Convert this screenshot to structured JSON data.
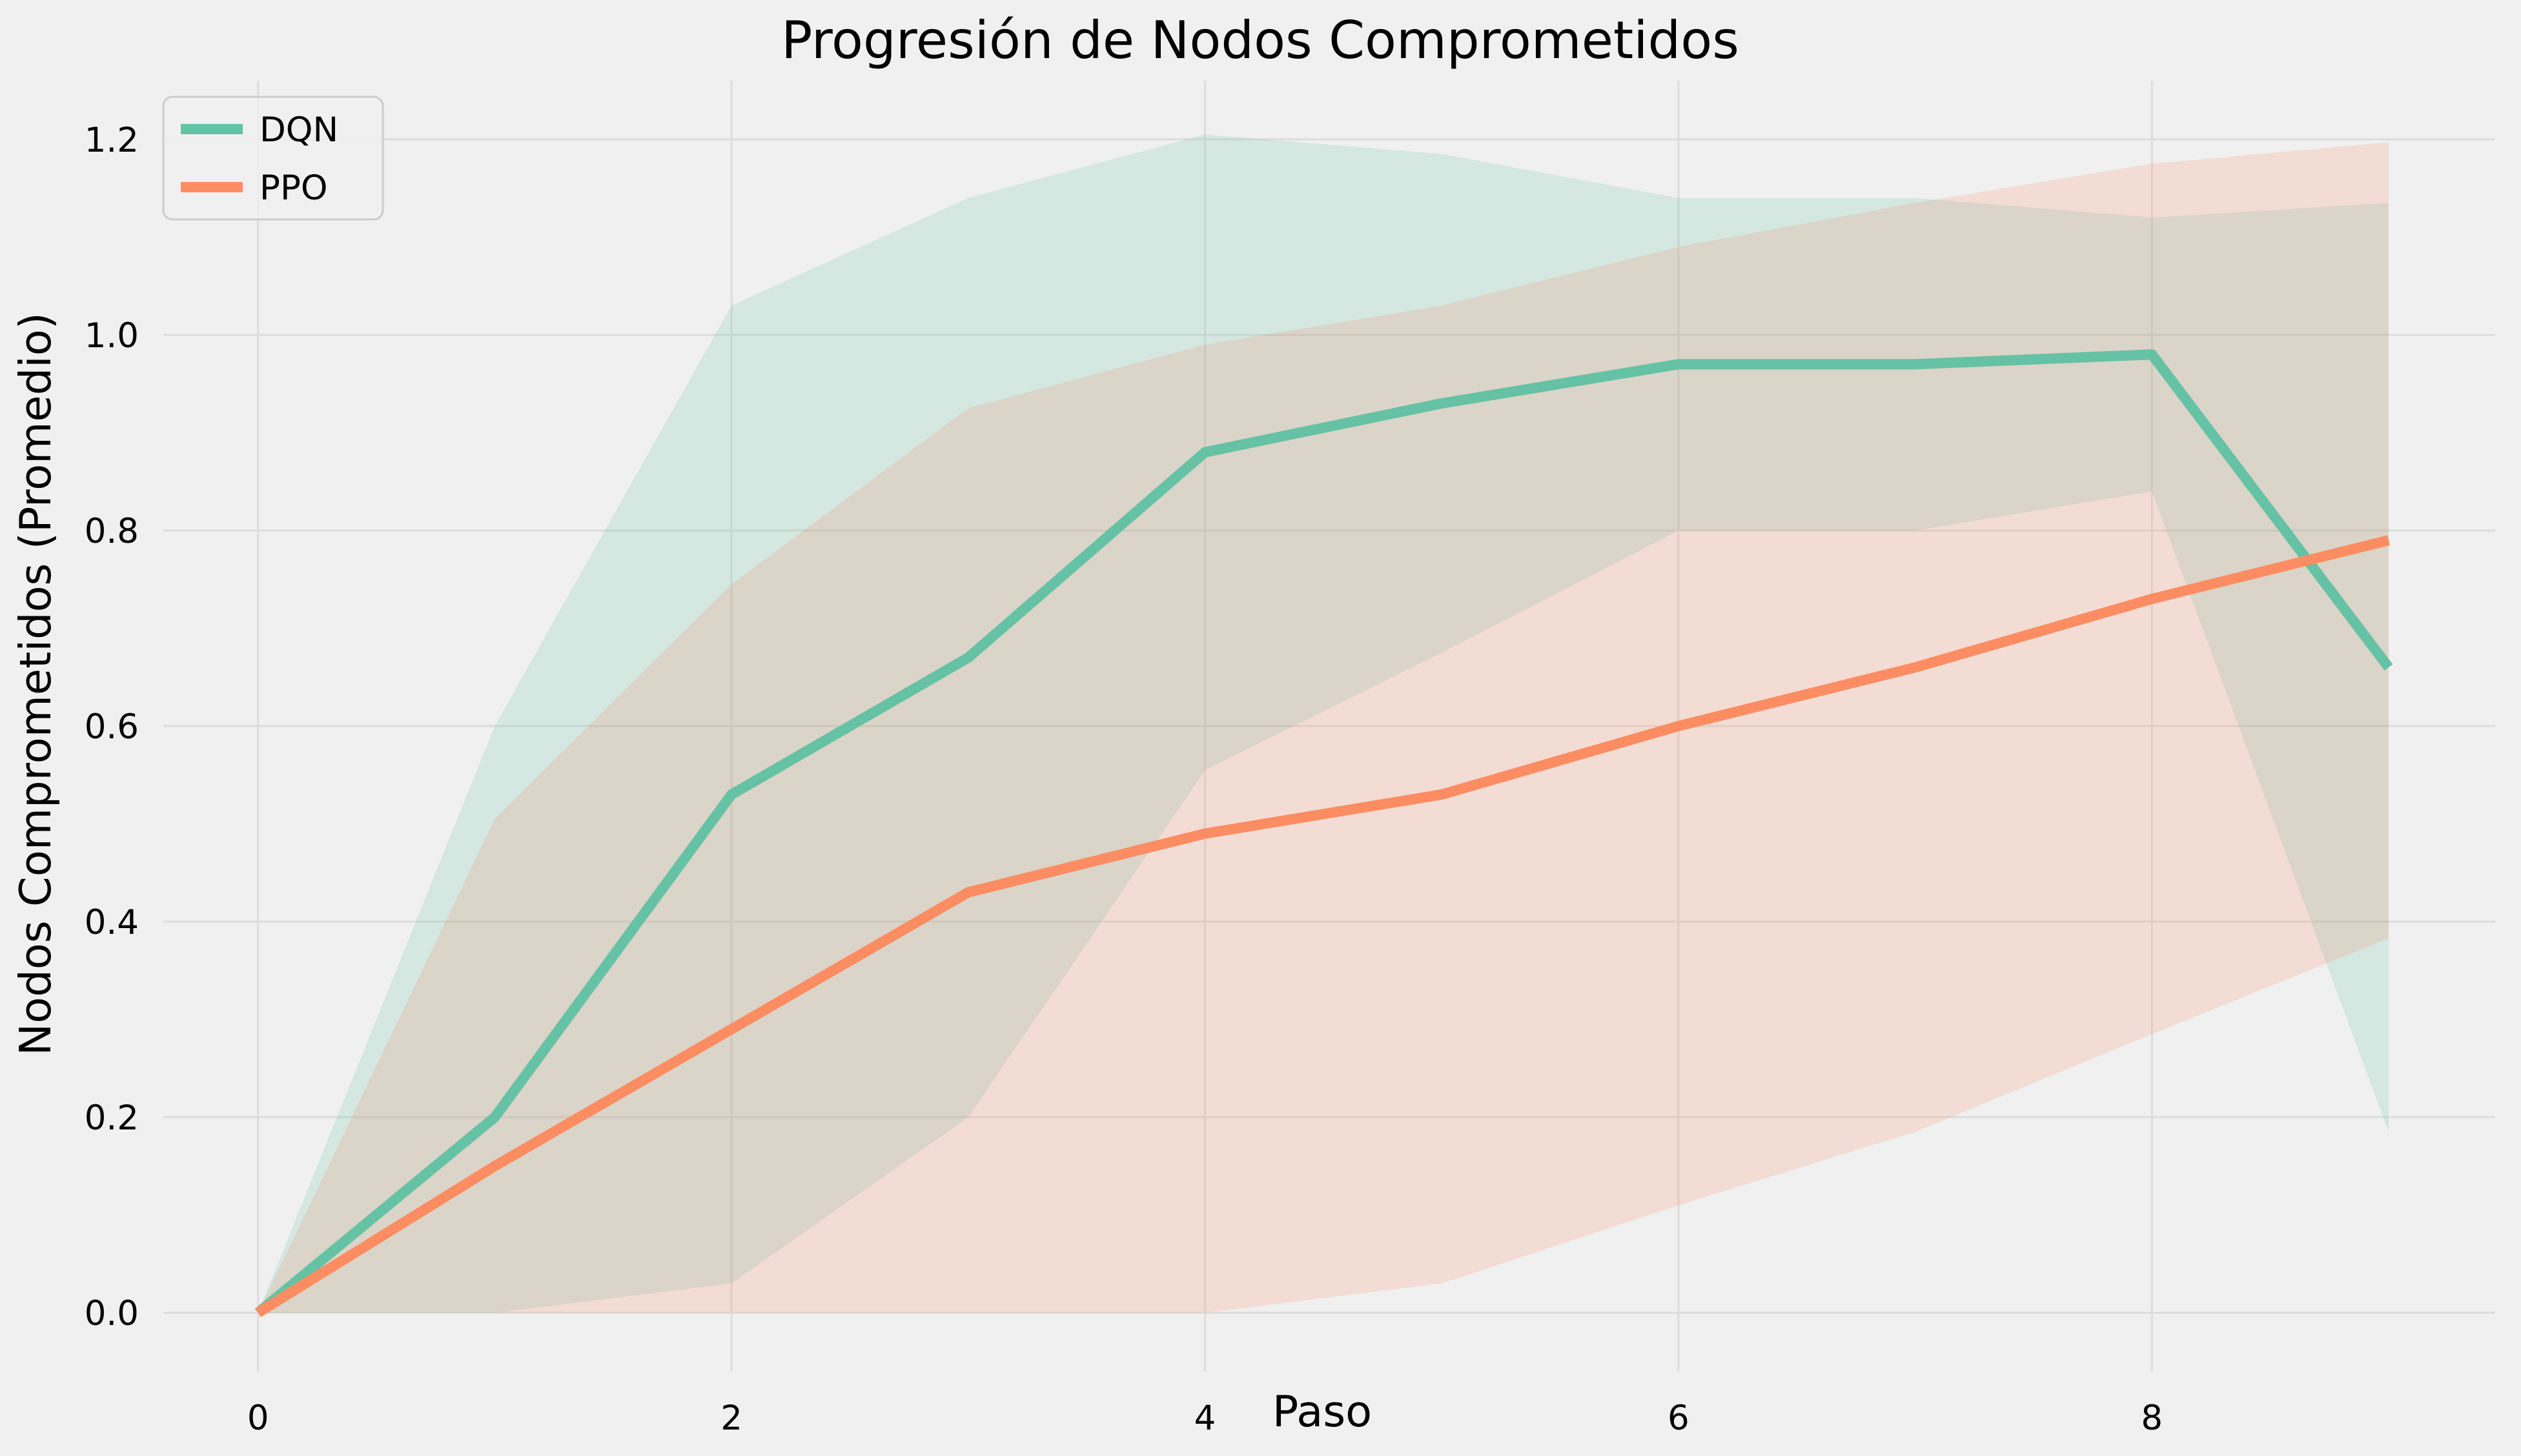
{
  "colors": {
    "background": "#f0f0f0",
    "grid": "#dcdcdc",
    "dqn": "#66c2a5",
    "ppo": "#fc8d62"
  },
  "chart_data": {
    "type": "line",
    "title": "Progresión de Nodos Comprometidos",
    "xlabel": "Paso",
    "ylabel": "Nodos Comprometidos (Promedio)",
    "xlim": [
      -0.4,
      9.45
    ],
    "ylim": [
      -0.06,
      1.26
    ],
    "xticks": [
      0,
      2,
      4,
      6,
      8
    ],
    "yticks": [
      0.0,
      0.2,
      0.4,
      0.6,
      0.8,
      1.0,
      1.2
    ],
    "xtick_labels": [
      "0",
      "2",
      "4",
      "6",
      "8"
    ],
    "ytick_labels": [
      "0.0",
      "0.2",
      "0.4",
      "0.6",
      "0.8",
      "1.0",
      "1.2"
    ],
    "grid": true,
    "legend_position": "top-left",
    "x": [
      0,
      1,
      2,
      3,
      4,
      5,
      6,
      7,
      8,
      9
    ],
    "series": [
      {
        "name": "DQN",
        "color": "#66c2a5",
        "values": [
          0.0,
          0.2,
          0.53,
          0.67,
          0.88,
          0.93,
          0.97,
          0.97,
          0.98,
          0.66
        ],
        "upper": [
          0.0,
          0.6,
          1.03,
          1.14,
          1.205,
          1.185,
          1.14,
          1.14,
          1.12,
          1.135
        ],
        "lower": [
          0.0,
          0.0,
          0.03,
          0.2,
          0.555,
          0.675,
          0.8,
          0.8,
          0.84,
          0.185
        ]
      },
      {
        "name": "PPO",
        "color": "#fc8d62",
        "values": [
          0.0,
          0.15,
          0.29,
          0.43,
          0.49,
          0.53,
          0.6,
          0.66,
          0.73,
          0.79
        ],
        "upper": [
          0.0,
          0.505,
          0.745,
          0.925,
          0.99,
          1.03,
          1.09,
          1.135,
          1.175,
          1.197
        ],
        "lower": [
          0.0,
          0.0,
          0.0,
          0.0,
          0.0,
          0.03,
          0.11,
          0.185,
          0.285,
          0.383
        ]
      }
    ]
  }
}
